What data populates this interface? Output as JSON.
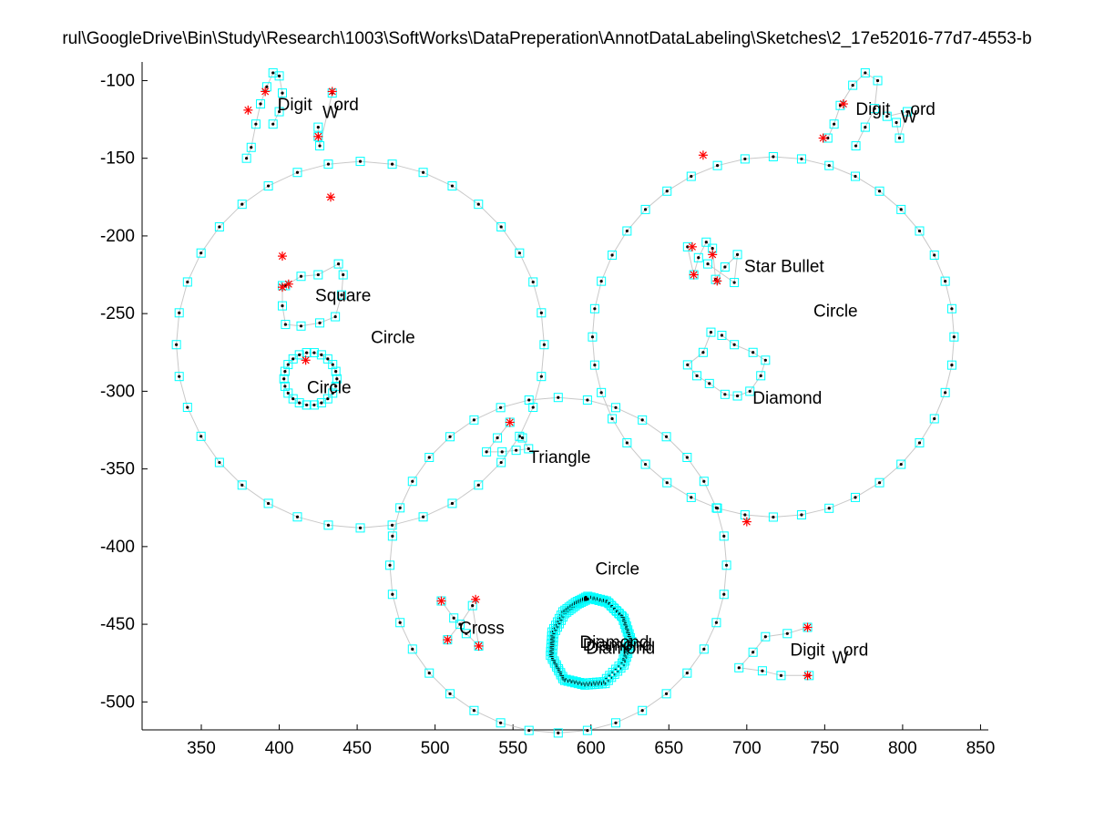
{
  "chart_data": {
    "type": "scatter",
    "title": "rul\\GoogleDrive\\Bin\\Study\\Research\\1003\\SoftWorks\\DataPreperation\\AnnotDataLabeling\\Sketches\\2_17e52016-77d7-4553-b",
    "xlabel": "",
    "ylabel": "",
    "xlim": [
      312,
      855
    ],
    "ylim": [
      -518,
      -88
    ],
    "xticks": [
      350,
      400,
      450,
      500,
      550,
      600,
      650,
      700,
      750,
      800,
      850
    ],
    "yticks": [
      -100,
      -150,
      -200,
      -250,
      -300,
      -350,
      -400,
      -450,
      -500
    ],
    "grid": false,
    "colors": {
      "marker_box": "#00ffff",
      "dot": "#000000",
      "corner": "#ff0000",
      "curve": "#c8c8c8",
      "axis": "#000000"
    },
    "circles": [
      {
        "label": "Circle",
        "cx": 452,
        "cy": -270,
        "r": 118,
        "pts": 36
      },
      {
        "label": "Circle",
        "cx": 717,
        "cy": -265,
        "r": 116,
        "pts": 40
      },
      {
        "label": "Circle",
        "cx": 579,
        "cy": -412,
        "r": 108,
        "pts": 36
      },
      {
        "label": "Circle",
        "cx": 420,
        "cy": -292,
        "r": 17,
        "pts": 22
      }
    ],
    "strokes": [
      {
        "label": "Digit",
        "pts": [
          [
            379,
            -150
          ],
          [
            382,
            -143
          ],
          [
            385,
            -128
          ],
          [
            388,
            -115
          ],
          [
            392,
            -104
          ],
          [
            396,
            -95
          ],
          [
            400,
            -97
          ],
          [
            402,
            -108
          ],
          [
            400,
            -120
          ],
          [
            396,
            -128
          ]
        ]
      },
      {
        "label": "Word",
        "pts": [
          [
            425,
            -130
          ],
          [
            425,
            -136
          ],
          [
            426,
            -142
          ],
          [
            434,
            -108
          ]
        ]
      },
      {
        "label": "Digit",
        "pts": [
          [
            752,
            -137
          ],
          [
            756,
            -128
          ],
          [
            760,
            -116
          ],
          [
            768,
            -103
          ],
          [
            776,
            -95
          ],
          [
            784,
            -100
          ],
          [
            782,
            -118
          ],
          [
            776,
            -130
          ],
          [
            770,
            -142
          ]
        ]
      },
      {
        "label": "Word",
        "pts": [
          [
            796,
            -127
          ],
          [
            798,
            -137
          ],
          [
            803,
            -120
          ],
          [
            790,
            -123
          ]
        ]
      },
      {
        "label": "Square",
        "pts": [
          [
            402,
            -232
          ],
          [
            402,
            -245
          ],
          [
            404,
            -257
          ],
          [
            414,
            -258
          ],
          [
            426,
            -256
          ],
          [
            436,
            -252
          ],
          [
            440,
            -238
          ],
          [
            441,
            -225
          ],
          [
            438,
            -218
          ],
          [
            425,
            -225
          ],
          [
            414,
            -226
          ],
          [
            404,
            -232
          ]
        ]
      },
      {
        "label": "Star Bullet",
        "pts": [
          [
            662,
            -207
          ],
          [
            666,
            -225
          ],
          [
            669,
            -214
          ],
          [
            674,
            -204
          ],
          [
            678,
            -208
          ],
          [
            680,
            -228
          ],
          [
            686,
            -220
          ],
          [
            694,
            -212
          ],
          [
            692,
            -230
          ],
          [
            675,
            -218
          ]
        ]
      },
      {
        "label": "Diamond",
        "pts": [
          [
            677,
            -262
          ],
          [
            672,
            -275
          ],
          [
            662,
            -283
          ],
          [
            668,
            -290
          ],
          [
            676,
            -295
          ],
          [
            686,
            -302
          ],
          [
            694,
            -303
          ],
          [
            702,
            -300
          ],
          [
            709,
            -290
          ],
          [
            712,
            -280
          ],
          [
            704,
            -275
          ],
          [
            692,
            -270
          ],
          [
            684,
            -264
          ]
        ]
      },
      {
        "label": "Triangle",
        "pts": [
          [
            548,
            -320
          ],
          [
            540,
            -330
          ],
          [
            533,
            -339
          ],
          [
            543,
            -339
          ],
          [
            552,
            -338
          ],
          [
            560,
            -337
          ],
          [
            556,
            -330
          ]
        ]
      },
      {
        "label": "Cross",
        "pts": [
          [
            504,
            -435
          ],
          [
            512,
            -446
          ],
          [
            520,
            -456
          ],
          [
            528,
            -464
          ],
          [
            524,
            -438
          ],
          [
            516,
            -450
          ],
          [
            508,
            -460
          ]
        ]
      },
      {
        "label": "Digit",
        "pts": [
          [
            739,
            -452
          ],
          [
            726,
            -456
          ],
          [
            712,
            -458
          ],
          [
            704,
            -468
          ],
          [
            695,
            -478
          ],
          [
            710,
            -480
          ],
          [
            722,
            -483
          ],
          [
            740,
            -483
          ]
        ]
      }
    ],
    "corners": [
      [
        380,
        -119
      ],
      [
        391,
        -107
      ],
      [
        434,
        -107
      ],
      [
        425,
        -136
      ],
      [
        433,
        -175
      ],
      [
        402,
        -213
      ],
      [
        406,
        -231
      ],
      [
        417,
        -280
      ],
      [
        402,
        -233
      ],
      [
        548,
        -320
      ],
      [
        665,
        -207
      ],
      [
        666,
        -225
      ],
      [
        681,
        -229
      ],
      [
        678,
        -212
      ],
      [
        749,
        -137
      ],
      [
        762,
        -115
      ],
      [
        672,
        -148
      ],
      [
        700,
        -384
      ],
      [
        508,
        -460
      ],
      [
        739,
        -483
      ],
      [
        739,
        -452
      ],
      [
        526,
        -434
      ],
      [
        504,
        -435
      ],
      [
        528,
        -464
      ]
    ],
    "blobs": [
      {
        "label": "Diamond",
        "pts": [
          [
            598,
            -432
          ],
          [
            610,
            -435
          ],
          [
            620,
            -445
          ],
          [
            625,
            -460
          ],
          [
            620,
            -475
          ],
          [
            608,
            -487
          ],
          [
            595,
            -488
          ],
          [
            582,
            -485
          ],
          [
            574,
            -470
          ],
          [
            575,
            -455
          ],
          [
            582,
            -442
          ],
          [
            590,
            -436
          ]
        ]
      }
    ],
    "annotations": [
      {
        "text": "Digit",
        "x": 410,
        "y": -115
      },
      {
        "text": "W",
        "x": 433,
        "y": -120
      },
      {
        "text": "ord",
        "x": 443,
        "y": -115
      },
      {
        "text": "Digit",
        "x": 781,
        "y": -118
      },
      {
        "text": "W",
        "x": 804,
        "y": -123
      },
      {
        "text": "ord",
        "x": 813,
        "y": -118
      },
      {
        "text": "Square",
        "x": 441,
        "y": -238
      },
      {
        "text": "Circle",
        "x": 473,
        "y": -265
      },
      {
        "text": "Circle",
        "x": 757,
        "y": -248
      },
      {
        "text": "Star Bullet",
        "x": 724,
        "y": -219
      },
      {
        "text": "Circle",
        "x": 432,
        "y": -297
      },
      {
        "text": "Diamond",
        "x": 726,
        "y": -304
      },
      {
        "text": "Triangle",
        "x": 580,
        "y": -342
      },
      {
        "text": "Circle",
        "x": 617,
        "y": -414
      },
      {
        "text": "Cross",
        "x": 530,
        "y": -452
      },
      {
        "text": "Diamond",
        "x": 615,
        "y": -461
      },
      {
        "text": "Diamond",
        "x": 617,
        "y": -463
      },
      {
        "text": "Diamond",
        "x": 619,
        "y": -465
      },
      {
        "text": "Digit",
        "x": 739,
        "y": -466
      },
      {
        "text": "W",
        "x": 760,
        "y": -471
      },
      {
        "text": "ord",
        "x": 770,
        "y": -466
      }
    ]
  }
}
